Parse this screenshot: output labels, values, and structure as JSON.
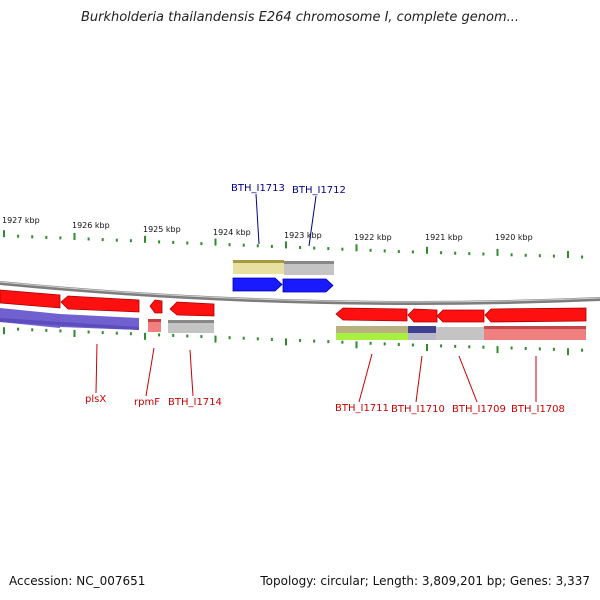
{
  "title": "Burkholderia thailandensis E264 chromosome I, complete genom...",
  "footer": {
    "accession": "Accession: NC_007651",
    "summary": "Topology: circular; Length: 3,809,201 bp; Genes: 3,337"
  },
  "scale": {
    "tick_labels": [
      "1927 kbp",
      "1926 kbp",
      "1925 kbp",
      "1924 kbp",
      "1923 kbp",
      "1922 kbp",
      "1921 kbp",
      "1920 kbp"
    ]
  },
  "genes": {
    "forward": [
      {
        "name": "BTH_I1713",
        "color": "#1a1aff"
      },
      {
        "name": "BTH_I1712",
        "color": "#1a1aff"
      }
    ],
    "reverse": [
      {
        "name": "plsX",
        "color": "#ff0000"
      },
      {
        "name": "rpmF",
        "color": "#ff0000"
      },
      {
        "name": "BTH_I1714",
        "color": "#ff0000"
      },
      {
        "name": "BTH_I1711",
        "color": "#ff0000"
      },
      {
        "name": "BTH_I1710",
        "color": "#ff0000"
      },
      {
        "name": "BTH_I1709",
        "color": "#ff0000"
      },
      {
        "name": "BTH_I1708",
        "color": "#ff0000"
      }
    ]
  },
  "colors": {
    "backbone": "#888888",
    "tick": "#2e8b2e",
    "forward_label": "#00008b",
    "reverse_label": "#cc0000",
    "cog_purple": "#7060d0",
    "cog_khaki": "#e8e0a0",
    "cog_gray": "#c0c0c0",
    "cog_green": "#a8f040",
    "cog_navy": "#404090",
    "cog_pink": "#f08080"
  }
}
